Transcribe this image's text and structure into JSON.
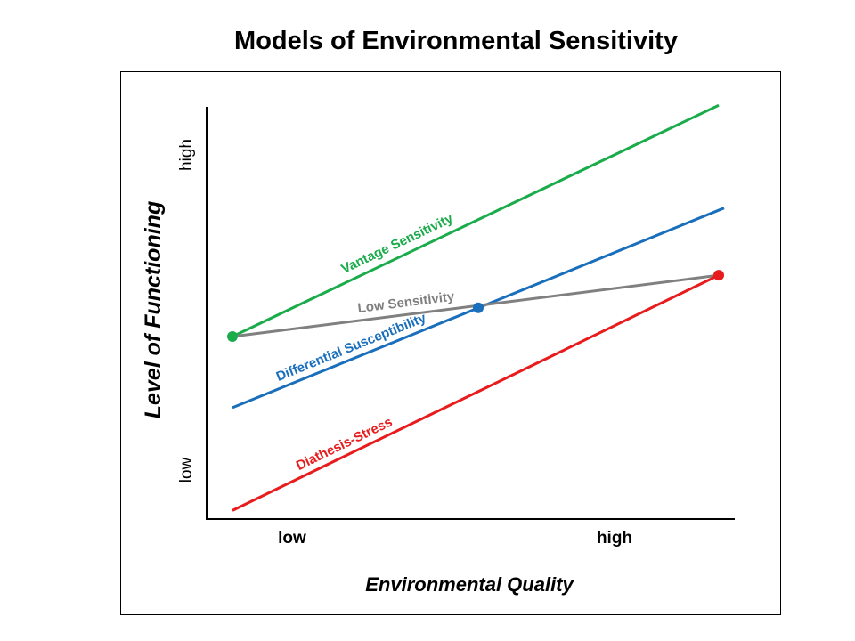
{
  "chart_data": {
    "type": "line",
    "title": "Models of Environmental Sensitivity",
    "xlabel": "Environmental Quality",
    "ylabel": "Level of Functioning",
    "x_ticks": [
      "low",
      "high"
    ],
    "y_ticks": [
      "low",
      "high"
    ],
    "xlim": [
      0,
      1
    ],
    "ylim": [
      0,
      1
    ],
    "series": [
      {
        "name": "Vantage Sensitivity",
        "color": "#1aab4b",
        "x": [
          0.06,
          0.97
        ],
        "y": [
          0.455,
          1.04
        ],
        "marker_start": true,
        "marker_end": false
      },
      {
        "name": "Differential Susceptibility",
        "color": "#1a6fbc",
        "x": [
          0.06,
          0.98
        ],
        "y": [
          0.275,
          0.78
        ],
        "marker_start": false,
        "marker_end": false,
        "marker_mid_x": 0.52
      },
      {
        "name": "Low Sensitivity",
        "color": "#808080",
        "x": [
          0.06,
          0.97
        ],
        "y": [
          0.455,
          0.61
        ],
        "marker_start": false,
        "marker_end": false
      },
      {
        "name": "Diathesis-Stress",
        "color": "#e81c1c",
        "x": [
          0.06,
          0.97
        ],
        "y": [
          0.015,
          0.61
        ],
        "marker_start": false,
        "marker_end": true
      }
    ]
  }
}
